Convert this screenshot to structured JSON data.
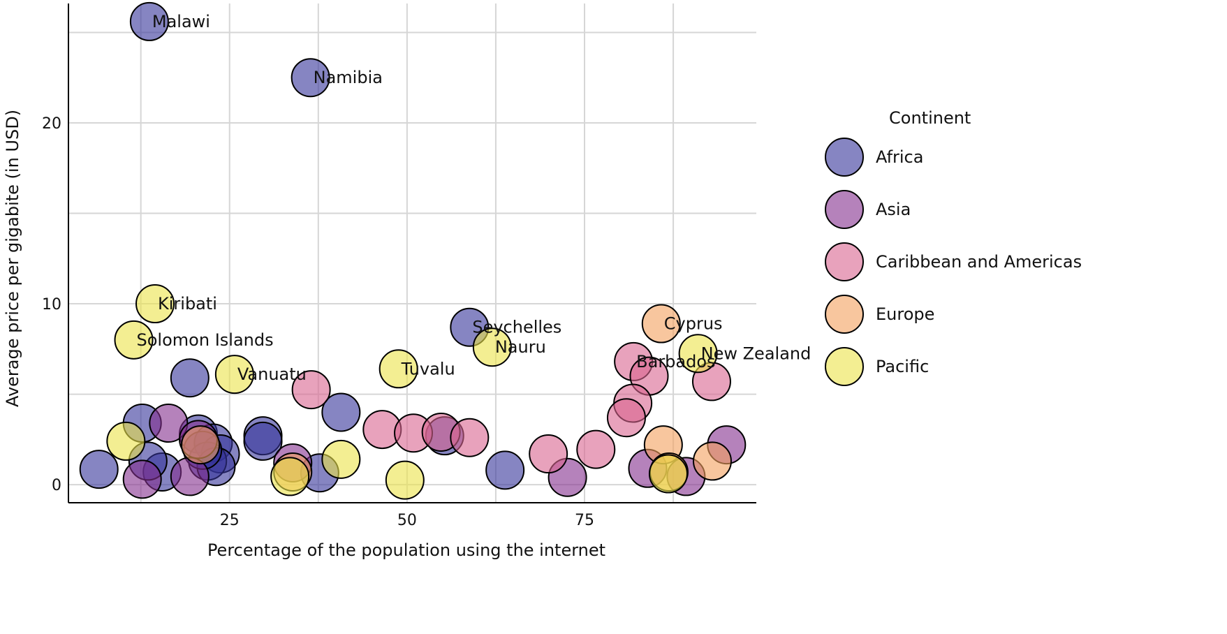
{
  "chart_data": {
    "type": "scatter",
    "title": "",
    "xlabel": "Percentage of the population using the internet",
    "ylabel": "Average price per gigabite (in USD)",
    "xlim": [
      2.3,
      99.2
    ],
    "ylim": [
      -1,
      26.6
    ],
    "xticks": [
      25,
      50,
      75
    ],
    "yticks": [
      0,
      10,
      20
    ],
    "grid": true,
    "legend": {
      "title": "Continent",
      "placement": "right",
      "entries": [
        {
          "name": "Africa",
          "color": "#353499"
        },
        {
          "name": "Asia",
          "color": "#842f8e"
        },
        {
          "name": "Caribbean and Americas",
          "color": "#d9648f"
        },
        {
          "name": "Europe",
          "color": "#f3a05d"
        },
        {
          "name": "Pacific",
          "color": "#ebe349"
        }
      ]
    },
    "points": [
      {
        "continent": "Africa",
        "x": 13.7,
        "y": 25.6,
        "label": "Malawi"
      },
      {
        "continent": "Africa",
        "x": 36.4,
        "y": 22.5,
        "label": "Namibia"
      },
      {
        "continent": "Africa",
        "x": 58.8,
        "y": 8.7,
        "label": "Seychelles"
      },
      {
        "continent": "Africa",
        "x": 19.4,
        "y": 5.9
      },
      {
        "continent": "Africa",
        "x": 40.7,
        "y": 4.0
      },
      {
        "continent": "Africa",
        "x": 12.7,
        "y": 3.4
      },
      {
        "continent": "Africa",
        "x": 6.6,
        "y": 0.85
      },
      {
        "continent": "Africa",
        "x": 15.5,
        "y": 0.7
      },
      {
        "continent": "Africa",
        "x": 20.6,
        "y": 2.8
      },
      {
        "continent": "Africa",
        "x": 22.7,
        "y": 2.3
      },
      {
        "continent": "Africa",
        "x": 23.7,
        "y": 1.7
      },
      {
        "continent": "Africa",
        "x": 29.7,
        "y": 2.7
      },
      {
        "continent": "Africa",
        "x": 29.7,
        "y": 2.4
      },
      {
        "continent": "Africa",
        "x": 37.7,
        "y": 0.65
      },
      {
        "continent": "Africa",
        "x": 63.8,
        "y": 0.8
      },
      {
        "continent": "Africa",
        "x": 13.5,
        "y": 1.3
      },
      {
        "continent": "Africa",
        "x": 21.9,
        "y": 1.3
      },
      {
        "continent": "Africa",
        "x": 23.1,
        "y": 1.0
      },
      {
        "continent": "Africa",
        "x": 55.3,
        "y": 2.7
      },
      {
        "continent": "Africa",
        "x": 21.2,
        "y": 1.9
      },
      {
        "continent": "Asia",
        "x": 16.4,
        "y": 3.4
      },
      {
        "continent": "Asia",
        "x": 12.7,
        "y": 0.3
      },
      {
        "continent": "Asia",
        "x": 19.4,
        "y": 0.45
      },
      {
        "continent": "Asia",
        "x": 33.9,
        "y": 1.2
      },
      {
        "continent": "Asia",
        "x": 72.6,
        "y": 0.4
      },
      {
        "continent": "Asia",
        "x": 83.9,
        "y": 0.9
      },
      {
        "continent": "Asia",
        "x": 89.3,
        "y": 0.45
      },
      {
        "continent": "Asia",
        "x": 95.0,
        "y": 2.2
      },
      {
        "continent": "Asia",
        "x": 20.6,
        "y": 2.5
      },
      {
        "continent": "Caribbean and Americas",
        "x": 36.5,
        "y": 5.25
      },
      {
        "continent": "Caribbean and Americas",
        "x": 46.5,
        "y": 3.05
      },
      {
        "continent": "Caribbean and Americas",
        "x": 50.9,
        "y": 2.85
      },
      {
        "continent": "Caribbean and Americas",
        "x": 54.8,
        "y": 2.9
      },
      {
        "continent": "Caribbean and Americas",
        "x": 58.8,
        "y": 2.6
      },
      {
        "continent": "Caribbean and Americas",
        "x": 69.9,
        "y": 1.7
      },
      {
        "continent": "Caribbean and Americas",
        "x": 76.6,
        "y": 1.95
      },
      {
        "continent": "Caribbean and Americas",
        "x": 81.9,
        "y": 6.8,
        "label": "Barbados"
      },
      {
        "continent": "Caribbean and Americas",
        "x": 84.1,
        "y": 6.0
      },
      {
        "continent": "Caribbean and Americas",
        "x": 81.8,
        "y": 4.5
      },
      {
        "continent": "Caribbean and Americas",
        "x": 80.9,
        "y": 3.7
      },
      {
        "continent": "Caribbean and Americas",
        "x": 92.9,
        "y": 5.7
      },
      {
        "continent": "Europe",
        "x": 85.8,
        "y": 8.9,
        "label": "Cyprus"
      },
      {
        "continent": "Europe",
        "x": 86.1,
        "y": 2.2
      },
      {
        "continent": "Europe",
        "x": 93.0,
        "y": 1.3
      },
      {
        "continent": "Europe",
        "x": 33.9,
        "y": 0.7
      },
      {
        "continent": "Europe",
        "x": 20.9,
        "y": 2.2
      },
      {
        "continent": "Europe",
        "x": 86.9,
        "y": 0.7
      },
      {
        "continent": "Pacific",
        "x": 14.5,
        "y": 10.0,
        "label": "Kiribati"
      },
      {
        "continent": "Pacific",
        "x": 11.5,
        "y": 8.0,
        "label": "Solomon Islands"
      },
      {
        "continent": "Pacific",
        "x": 25.7,
        "y": 6.1,
        "label": "Vanuatu"
      },
      {
        "continent": "Pacific",
        "x": 48.8,
        "y": 6.4,
        "label": "Tuvalu"
      },
      {
        "continent": "Pacific",
        "x": 62.0,
        "y": 7.6,
        "label": "Nauru"
      },
      {
        "continent": "Pacific",
        "x": 91.0,
        "y": 7.25,
        "label": "New Zealand"
      },
      {
        "continent": "Pacific",
        "x": 10.4,
        "y": 2.4
      },
      {
        "continent": "Pacific",
        "x": 40.7,
        "y": 1.4
      },
      {
        "continent": "Pacific",
        "x": 49.7,
        "y": 0.25
      },
      {
        "continent": "Pacific",
        "x": 33.5,
        "y": 0.45
      },
      {
        "continent": "Pacific",
        "x": 86.8,
        "y": 0.6
      }
    ]
  }
}
